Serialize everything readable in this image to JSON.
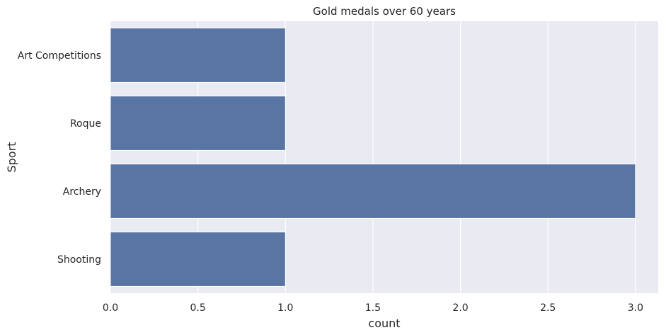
{
  "chart_data": {
    "type": "bar",
    "orientation": "horizontal",
    "title": "Gold medals over 60 years",
    "xlabel": "count",
    "ylabel": "Sport",
    "categories": [
      "Art Competitions",
      "Roque",
      "Archery",
      "Shooting"
    ],
    "values": [
      1,
      1,
      3,
      1
    ],
    "xlim": [
      0,
      3.13
    ],
    "xticks": [
      0.0,
      0.5,
      1.0,
      1.5,
      2.0,
      2.5,
      3.0
    ],
    "xtick_labels": [
      "0.0",
      "0.5",
      "1.0",
      "1.5",
      "2.0",
      "2.5",
      "3.0"
    ],
    "grid": true,
    "legend": "none",
    "colors": {
      "bar": "#5875a4",
      "plot_background": "#eaeaf2",
      "grid": "#ffffff"
    }
  }
}
